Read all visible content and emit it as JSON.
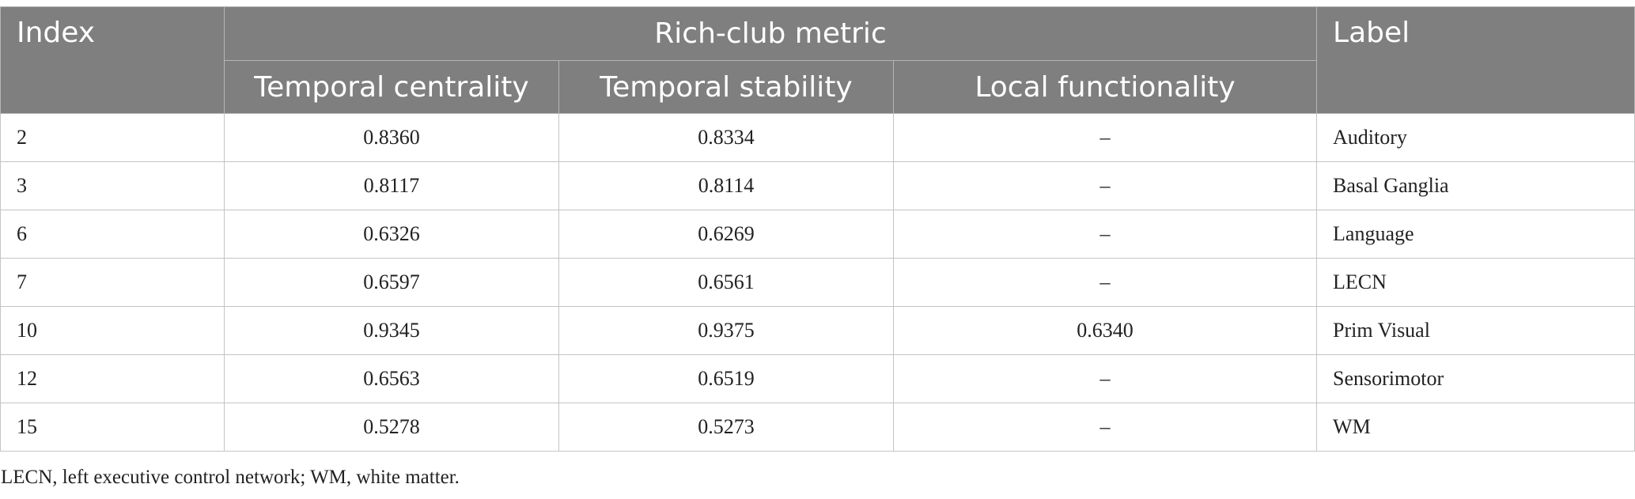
{
  "table": {
    "header": {
      "index": "Index",
      "group": "Rich-club metric",
      "label": "Label",
      "sub": [
        "Temporal centrality",
        "Temporal stability",
        "Local functionality"
      ]
    },
    "rows": [
      {
        "index": "2",
        "temporal_centrality": "0.8360",
        "temporal_stability": "0.8334",
        "local_functionality": "–",
        "label": "Auditory"
      },
      {
        "index": "3",
        "temporal_centrality": "0.8117",
        "temporal_stability": "0.8114",
        "local_functionality": "–",
        "label": "Basal Ganglia"
      },
      {
        "index": "6",
        "temporal_centrality": "0.6326",
        "temporal_stability": "0.6269",
        "local_functionality": "–",
        "label": "Language"
      },
      {
        "index": "7",
        "temporal_centrality": "0.6597",
        "temporal_stability": "0.6561",
        "local_functionality": "–",
        "label": "LECN"
      },
      {
        "index": "10",
        "temporal_centrality": "0.9345",
        "temporal_stability": "0.9375",
        "local_functionality": "0.6340",
        "label": "Prim Visual"
      },
      {
        "index": "12",
        "temporal_centrality": "0.6563",
        "temporal_stability": "0.6519",
        "local_functionality": "–",
        "label": "Sensorimotor"
      },
      {
        "index": "15",
        "temporal_centrality": "0.5278",
        "temporal_stability": "0.5273",
        "local_functionality": "–",
        "label": "WM"
      }
    ]
  },
  "footnote": "LECN, left executive control network; WM, white matter."
}
